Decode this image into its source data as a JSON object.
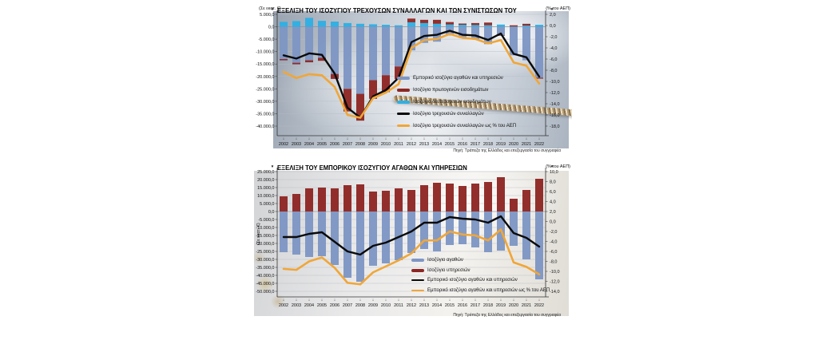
{
  "page": {
    "background": "#ffffff"
  },
  "colors": {
    "bar_slate": "#7E96C4",
    "bar_darkred": "#8E2723",
    "bar_cyan": "#2FAFE3",
    "line_black": "#0a0a0a",
    "line_orange": "#F0A638",
    "grid": "#b6bcc6",
    "axis_text": "#111111"
  },
  "chart_data": [
    {
      "id": "current-account-evolution",
      "type": "bar-line-combo",
      "title": "ΕΞΕΛΙΞΗ ΤΟΥ ΙΣΟΖΥΓΙΟΥ ΤΡΕΧΟΥΣΩΝ ΣΥΝΑΛΛΑΓΩΝ ΚΑΙ ΤΩΝ ΣΥΝΙΣΤΩΣΩΝ ΤΟΥ",
      "unit_left": "(Σε εκατ. €)",
      "unit_right": "(% του ΑΕΠ)",
      "source": "Πηγή: Τράπεζα της Ελλάδος και επεξεργασία του συγγραφέα",
      "categories": [
        "2002",
        "2003",
        "2004",
        "2005",
        "2006",
        "2007",
        "2008",
        "2009",
        "2010",
        "2011",
        "2012",
        "2013",
        "2014",
        "2015",
        "2016",
        "2017",
        "2018",
        "2019",
        "2020",
        "2021",
        "2022"
      ],
      "axis_left": {
        "max": 5000,
        "min": -40000,
        "labels": [
          "5.000,0",
          "0,0",
          "-5.000,0",
          "-10.000,0",
          "-15.000,0",
          "-20.000,0",
          "-25.000,0",
          "-30.000,0",
          "-35.000,0",
          "-40.000,0"
        ]
      },
      "axis_right": {
        "max": 2,
        "min": -18,
        "labels": [
          "2,0",
          "0,0",
          "-2,0",
          "-4,0",
          "-6,0",
          "-8,0",
          "-10,0",
          "-12,0",
          "-14,0",
          "-16,0",
          "-18,0"
        ]
      },
      "bar_series": [
        {
          "name": "Εμπορικό ισοζύγιο αγαθών και υπηρεσιών",
          "color": "#7E96C4",
          "values": [
            -13000,
            -14500,
            -13500,
            -12500,
            -19000,
            -25000,
            -27000,
            -21500,
            -19500,
            -16000,
            -9500,
            -6500,
            -6000,
            -3500,
            -4500,
            -5000,
            -7000,
            -3500,
            -11500,
            -13500,
            -20500
          ]
        },
        {
          "name": "Ισοζύγιο δευτερογενών εισοδημάτων",
          "color": "#2FAFE3",
          "values": [
            2000,
            2300,
            3600,
            2400,
            2100,
            1500,
            1200,
            1000,
            800,
            600,
            1800,
            1500,
            1200,
            900,
            800,
            700,
            600,
            900,
            100,
            500,
            800
          ]
        },
        {
          "name": "Ισοζύγιο πρωτογενών εισοδημάτων",
          "color": "#8E2723",
          "values": [
            -500,
            -600,
            -800,
            -1200,
            -2000,
            -9100,
            -10800,
            -7500,
            -6800,
            -5100,
            1500,
            1300,
            1600,
            1000,
            500,
            800,
            1100,
            -100,
            500,
            700,
            -400
          ]
        }
      ],
      "line_series": [
        {
          "name": "Ισοζύγιο τρεχουσών συναλλαγών",
          "color": "#0a0a0a",
          "axis": "left",
          "width": 2.4,
          "values": [
            -11500,
            -12800,
            -10700,
            -11300,
            -18900,
            -32600,
            -36600,
            -28000,
            -25500,
            -20500,
            -6200,
            -3700,
            -3200,
            -1600,
            -3200,
            -3500,
            -5300,
            -2700,
            -10900,
            -12300,
            -20100
          ]
        },
        {
          "name": "Ισοζύγιο τρεχουσών συναλλαγών ως % του ΑΕΠ",
          "color": "#F0A638",
          "axis": "right",
          "width": 2.6,
          "values": [
            -8.3,
            -9.4,
            -8.7,
            -8.9,
            -11.0,
            -16.0,
            -16.5,
            -13.0,
            -12.0,
            -10.5,
            -4.0,
            -2.6,
            -2.4,
            -1.5,
            -2.2,
            -2.4,
            -3.2,
            -2.6,
            -6.6,
            -7.2,
            -10.4
          ]
        }
      ],
      "legend": [
        {
          "label": "Εμπορικό ισοζύγιο αγαθών και υπηρεσιών",
          "color": "#7E96C4",
          "shape": "bar"
        },
        {
          "label": "Ισοζύγιο πρωτογενών εισοδημάτων",
          "color": "#8E2723",
          "shape": "bar"
        },
        {
          "label": "Ισοζύγιο δευτερογενών εισοδημάτων",
          "color": "#2FAFE3",
          "shape": "bar"
        },
        {
          "label": "Ισοζύγιο τρεχουσών συναλλαγών",
          "color": "#0a0a0a",
          "shape": "line"
        },
        {
          "label": "Ισοζύγιο τρεχουσών συναλλαγών ως % του ΑΕΠ",
          "color": "#F0A638",
          "shape": "line"
        }
      ]
    },
    {
      "id": "trade-balance-goods-services",
      "type": "bar-line-combo",
      "title": "ΕΞΕΛΙΞΗ ΤΟΥ ΕΜΠΟΡΙΚΟΥ ΙΣΟΖΥΓΙΟΥ ΑΓΑΘΩΝ ΚΑΙ ΥΠΗΡΕΣΙΩΝ",
      "unit_left": "(Σε εκατ. €)",
      "unit_right": "(% του ΑΕΠ)",
      "source": "Πηγή: Τράπεζα της Ελλάδος και επεξεργασία του συγγραφέα",
      "categories": [
        "2002",
        "2003",
        "2004",
        "2005",
        "2006",
        "2007",
        "2008",
        "2009",
        "2010",
        "2011",
        "2012",
        "2013",
        "2014",
        "2015",
        "2016",
        "2017",
        "2018",
        "2019",
        "2020",
        "2021",
        "2022"
      ],
      "axis_left": {
        "max": 25000,
        "min": -50000,
        "labels": [
          "25.000,0",
          "20.000,0",
          "15.000,0",
          "10.000,0",
          "5.000,0",
          "0,0",
          "-5.000,0",
          "-10.000,0",
          "-15.000,0",
          "-20.000,0",
          "-25.000,0",
          "-30.000,0",
          "-35.000,0",
          "-40.000,0",
          "-45.000,0",
          "-50.000,0"
        ]
      },
      "axis_right": {
        "max": 10,
        "min": -14,
        "labels": [
          "10,0",
          "8,0",
          "6,0",
          "4,0",
          "2,0",
          "0,0",
          "-2,0",
          "-4,0",
          "-6,0",
          "-8,0",
          "-10,0",
          "-12,0",
          "-14,0"
        ]
      },
      "bar_series": [
        {
          "name": "Ισοζύγιο αγαθών",
          "color": "#7E96C4",
          "values": [
            -25500,
            -27000,
            -28500,
            -28000,
            -33500,
            -41500,
            -44000,
            -34000,
            -32500,
            -30500,
            -26000,
            -23500,
            -25000,
            -21000,
            -20500,
            -22500,
            -25500,
            -24500,
            -21500,
            -30000,
            -42500
          ]
        },
        {
          "name": "Ισοζύγιο υπηρεσιών",
          "color": "#8E2723",
          "values": [
            9500,
            11000,
            14500,
            15000,
            14500,
            16500,
            17000,
            12500,
            13000,
            14500,
            13500,
            16500,
            18000,
            17500,
            16000,
            17500,
            18500,
            21500,
            8000,
            13500,
            20500
          ]
        }
      ],
      "line_series": [
        {
          "name": "Εμπορικό ισοζύγιο αγαθών και υπηρεσιών",
          "color": "#0a0a0a",
          "axis": "left",
          "width": 2.4,
          "values": [
            -16000,
            -16000,
            -14000,
            -13000,
            -19000,
            -25000,
            -27000,
            -21500,
            -19500,
            -16000,
            -12500,
            -7000,
            -7000,
            -3500,
            -4500,
            -5000,
            -7000,
            -3000,
            -13500,
            -16500,
            -22000
          ]
        },
        {
          "name": "Εμπορικό ισοζύγιο αγαθών και υπηρεσιών ως % του ΑΕΠ",
          "color": "#F0A638",
          "axis": "right",
          "width": 2.6,
          "values": [
            -9.5,
            -9.7,
            -8.0,
            -7.2,
            -9.3,
            -12.3,
            -12.6,
            -10.2,
            -9.0,
            -7.8,
            -6.4,
            -3.8,
            -3.8,
            -2.0,
            -2.6,
            -2.8,
            -3.8,
            -1.6,
            -8.2,
            -9.1,
            -10.6
          ]
        }
      ],
      "legend": [
        {
          "label": "Ισοζύγιο αγαθών",
          "color": "#7E96C4",
          "shape": "bar"
        },
        {
          "label": "Ισοζύγιο υπηρεσιών",
          "color": "#8E2723",
          "shape": "bar"
        },
        {
          "label": "Εμπορικό ισοζύγιο αγαθών και υπηρεσιών",
          "color": "#0a0a0a",
          "shape": "line"
        },
        {
          "label": "Εμπορικό ισοζύγιο αγαθών και υπηρεσιών ως % του ΑΕΠ",
          "color": "#F0A638",
          "shape": "line"
        }
      ]
    }
  ]
}
